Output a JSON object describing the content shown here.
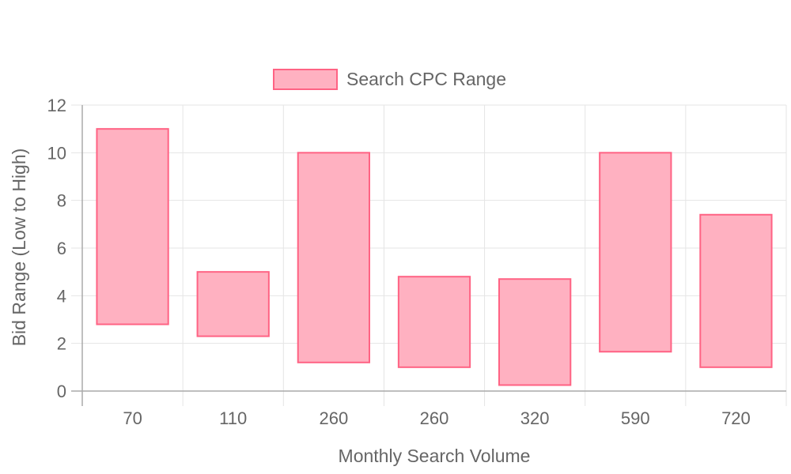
{
  "chart_data": {
    "type": "bar",
    "subtype": "floating-range",
    "categories": [
      "70",
      "110",
      "260",
      "260",
      "320",
      "590",
      "720"
    ],
    "series": [
      {
        "name": "Search CPC Range",
        "ranges": [
          [
            2.8,
            11.0
          ],
          [
            2.3,
            5.0
          ],
          [
            1.2,
            10.0
          ],
          [
            1.0,
            4.8
          ],
          [
            0.25,
            4.7
          ],
          [
            1.65,
            10.0
          ],
          [
            1.0,
            7.4
          ]
        ]
      }
    ],
    "xlabel": "Monthly Search Volume",
    "ylabel": "Bid Range (Low to High)",
    "ylim": [
      0,
      12
    ],
    "yticks": [
      0,
      2,
      4,
      6,
      8,
      10,
      12
    ],
    "grid": true,
    "legend_position": "top",
    "colors": {
      "fill": "#ffb1c1",
      "stroke": "#ff6384",
      "grid": "#e5e5e5",
      "axis": "#aaaaaa",
      "text": "#666666"
    }
  }
}
